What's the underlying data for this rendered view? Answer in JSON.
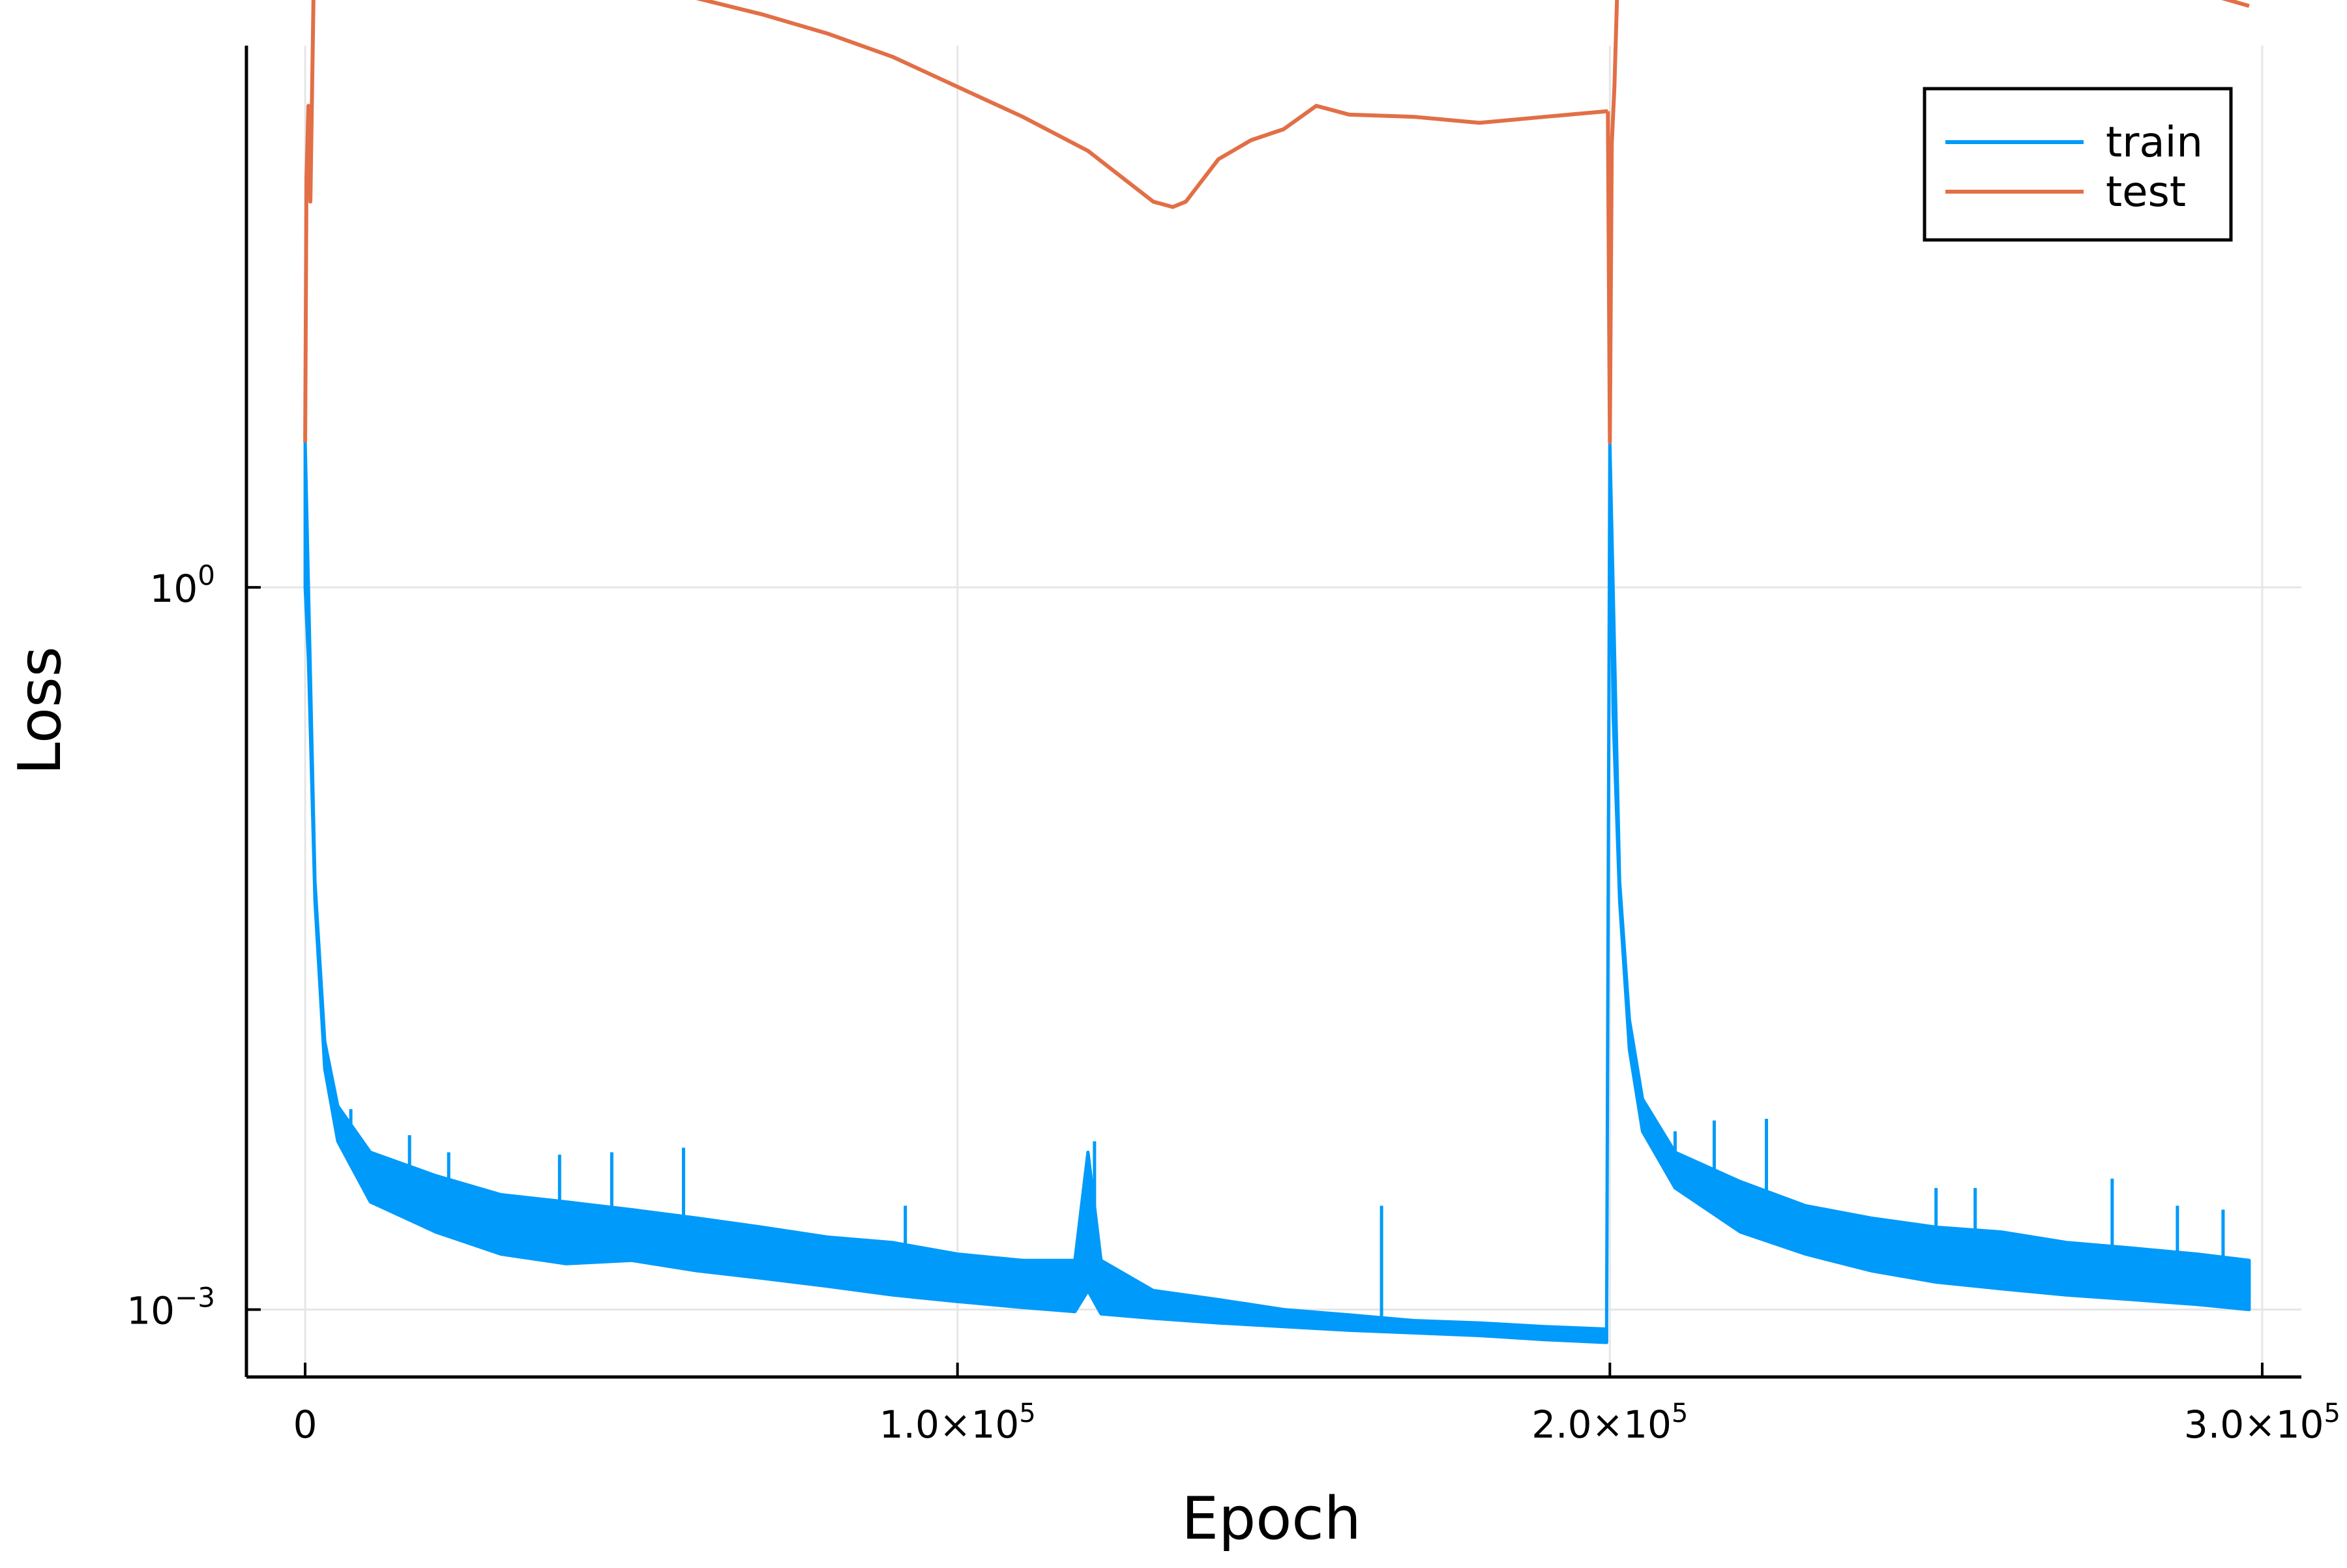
{
  "chart_data": {
    "type": "line",
    "xlabel": "Epoch",
    "ylabel": "Loss",
    "yscale": "log",
    "xlim": [
      -9000,
      306000
    ],
    "ylim_log10": [
      -3.28,
      2.25
    ],
    "xticks": [
      {
        "value": 0,
        "label": "0"
      },
      {
        "value": 100000,
        "label": "1.0×10",
        "exp": "5"
      },
      {
        "value": 200000,
        "label": "2.0×10",
        "exp": "5"
      },
      {
        "value": 300000,
        "label": "3.0×10",
        "exp": "5"
      }
    ],
    "yticks": [
      {
        "value": 1,
        "label": "10",
        "exp": "0"
      },
      {
        "value": 0.001,
        "label": "10",
        "exp": "−3"
      }
    ],
    "grid": true,
    "legend_position": "top-right",
    "series": [
      {
        "name": "train",
        "color": "#009AFA",
        "band": {
          "x": [
            0,
            500,
            1500,
            3000,
            5000,
            10000,
            20000,
            30000,
            40000,
            50000,
            60000,
            70000,
            80000,
            90000,
            100000,
            110000,
            118000,
            120000,
            122000,
            130000,
            140000,
            150000,
            160000,
            170000,
            180000,
            190000,
            199500
          ],
          "lower": [
            1.0,
            0.5,
            0.05,
            0.01,
            0.005,
            0.0028,
            0.0021,
            0.0017,
            0.00155,
            0.0016,
            0.00145,
            0.00135,
            0.00125,
            0.00115,
            0.00108,
            0.00102,
            0.00098,
            0.0012,
            0.00096,
            0.00092,
            0.00088,
            0.00085,
            0.00082,
            0.0008,
            0.00078,
            0.00075,
            0.00073
          ],
          "upper": [
            4.0,
            1.0,
            0.06,
            0.013,
            0.007,
            0.0045,
            0.0036,
            0.003,
            0.0028,
            0.0026,
            0.0024,
            0.0022,
            0.002,
            0.0019,
            0.0017,
            0.0016,
            0.0016,
            0.0045,
            0.0016,
            0.0012,
            0.0011,
            0.001,
            0.00095,
            0.0009,
            0.00088,
            0.00085,
            0.00083
          ]
        },
        "band_restart": {
          "x": [
            199500,
            200000,
            200500,
            201500,
            203000,
            205000,
            210000,
            220000,
            230000,
            240000,
            250000,
            260000,
            270000,
            280000,
            290000,
            298000
          ],
          "lower": [
            0.00073,
            4.0,
            0.3,
            0.05,
            0.012,
            0.0055,
            0.0032,
            0.0021,
            0.0017,
            0.00145,
            0.0013,
            0.00122,
            0.00115,
            0.0011,
            0.00105,
            0.001
          ],
          "upper": [
            0.00083,
            4.0,
            1.0,
            0.06,
            0.016,
            0.0075,
            0.0045,
            0.0034,
            0.0027,
            0.0024,
            0.0022,
            0.0021,
            0.0019,
            0.0018,
            0.0017,
            0.0016
          ]
        },
        "spikes": [
          {
            "x": 7000,
            "y": 0.0068
          },
          {
            "x": 16000,
            "y": 0.0053
          },
          {
            "x": 22000,
            "y": 0.0045
          },
          {
            "x": 39000,
            "y": 0.0044
          },
          {
            "x": 47000,
            "y": 0.0045
          },
          {
            "x": 58000,
            "y": 0.0047
          },
          {
            "x": 92000,
            "y": 0.0027
          },
          {
            "x": 121000,
            "y": 0.005
          },
          {
            "x": 165000,
            "y": 0.0027
          },
          {
            "x": 210000,
            "y": 0.0055
          },
          {
            "x": 216000,
            "y": 0.0061
          },
          {
            "x": 224000,
            "y": 0.0062
          },
          {
            "x": 250000,
            "y": 0.0032
          },
          {
            "x": 256000,
            "y": 0.0032
          },
          {
            "x": 277000,
            "y": 0.0035
          },
          {
            "x": 287000,
            "y": 0.0027
          },
          {
            "x": 294000,
            "y": 0.0026
          }
        ]
      },
      {
        "name": "test",
        "color": "#E26F46",
        "segments": [
          {
            "x": [
              0,
              200,
              500,
              800,
              1500,
              3000,
              5000,
              8000,
              10000,
              12000,
              15000,
              18000,
              20000,
              22000,
              25000,
              30000,
              40000,
              45000,
              50000,
              52000,
              55000,
              60000,
              70000,
              80000,
              90000,
              100000,
              110000,
              120000,
              130000,
              133000,
              135000,
              140000,
              145000,
              150000,
              155000,
              160000,
              170000,
              180000,
              190000,
              199700
            ],
            "y": [
              4.0,
              50,
              100,
              40,
              700,
              800,
              900,
              830,
              880,
              860,
              730,
              600,
              620,
              560,
              520,
              500,
              470,
              440,
              400,
              360,
              300,
              280,
              240,
              200,
              160,
              120,
              90,
              65,
              40,
              38,
              40,
              60,
              72,
              80,
              100,
              92,
              90,
              85,
              90,
              95
            ]
          },
          {
            "x": [
              199700,
              200000,
              200300,
              200700,
              201500,
              203000,
              205000,
              208000,
              210000,
              212000,
              215000,
              220000,
              230000,
              240000,
              245000,
              250000,
              260000,
              270000,
              280000,
              290000,
              298000
            ],
            "y": [
              95,
              4.0,
              70,
              120,
              650,
              800,
              930,
              960,
              1000,
              880,
              740,
              680,
              600,
              560,
              520,
              440,
              390,
              350,
              320,
              300,
              260
            ]
          }
        ]
      }
    ]
  }
}
